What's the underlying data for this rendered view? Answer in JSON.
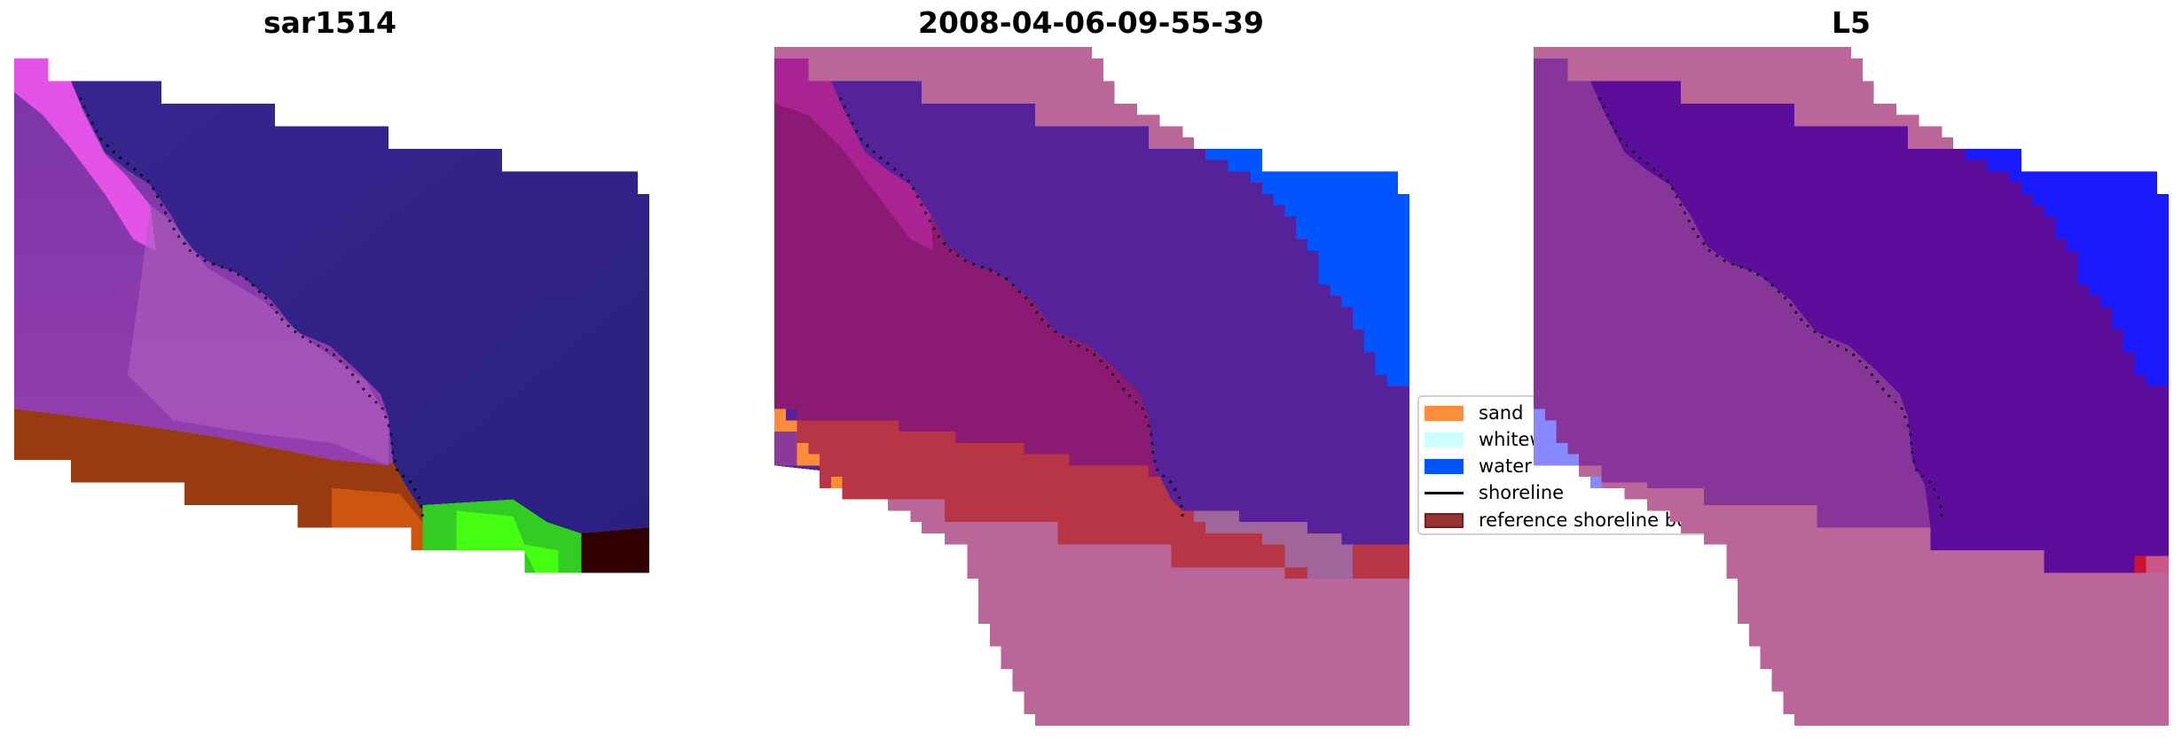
{
  "panels": [
    {
      "title": "sar1514"
    },
    {
      "title": "2008-04-06-09-55-39"
    },
    {
      "title": "L5"
    }
  ],
  "legend": {
    "items": [
      {
        "label": "sand",
        "color": "#ff8c3a",
        "kind": "patch"
      },
      {
        "label": "whitewater",
        "color": "#ccffff",
        "kind": "patch"
      },
      {
        "label": "water",
        "color": "#0055ff",
        "kind": "patch"
      },
      {
        "label": "shoreline",
        "color": "#000000",
        "kind": "line"
      },
      {
        "label": "reference shoreline buffer",
        "color": "#993333",
        "kind": "patch"
      }
    ]
  },
  "colors": {
    "buffer_overlay": "#bb6699",
    "classified_water": "#55229a",
    "classified_land": "#8a1a72",
    "classified_buffer": "#b83545",
    "classified_mauve": "#a06699",
    "index_land": "#88359a",
    "index_water": "#5c0d9a",
    "index_ocean": "#1a1aff"
  }
}
